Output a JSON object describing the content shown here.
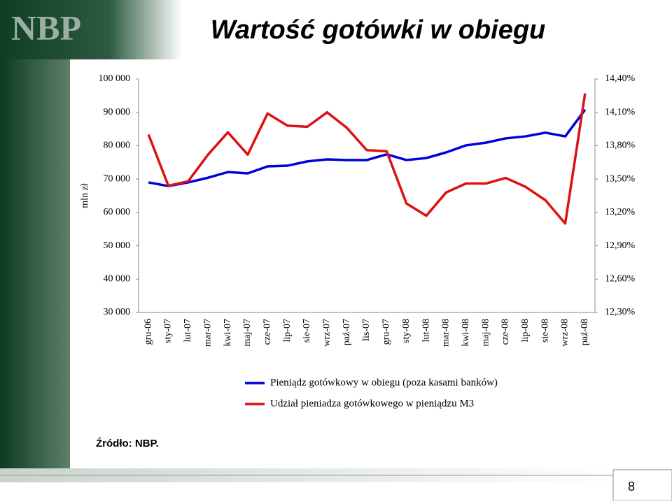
{
  "logo": "NBP",
  "page_number": "8",
  "source": "Źródło: NBP.",
  "chart_data": {
    "type": "line",
    "title": "Wartość gotówki w obiegu",
    "y_label": "mln zł",
    "categories": [
      "gru-06",
      "sty-07",
      "lut-07",
      "mar-07",
      "kwi-07",
      "maj-07",
      "cze-07",
      "lip-07",
      "sie-07",
      "wrz-07",
      "paź-07",
      "lis-07",
      "gru-07",
      "sty-08",
      "lut-08",
      "mar-08",
      "kwi-08",
      "maj-08",
      "cze-08",
      "lip-08",
      "sie-08",
      "wrz-08",
      "paź-08"
    ],
    "series": [
      {
        "name": "Pieniądz gotówkowy w obiegu (poza kasami banków)",
        "color": "#0000dd",
        "values": [
          69000,
          67900,
          69000,
          70400,
          72100,
          71700,
          73800,
          74000,
          75300,
          75900,
          75700,
          75700,
          77400,
          75700,
          76300,
          78000,
          80100,
          80900,
          82200,
          82800,
          83900,
          82800,
          90800
        ]
      },
      {
        "name": "Udział pieniadza gotówkowego w pieniądzu M3",
        "color": "#dd1111",
        "axis": "y2",
        "values": [
          13.9,
          13.44,
          13.48,
          13.72,
          13.92,
          13.72,
          14.09,
          13.98,
          13.97,
          14.1,
          13.96,
          13.76,
          13.75,
          13.28,
          13.17,
          13.38,
          13.46,
          13.46,
          13.51,
          13.43,
          13.31,
          13.1,
          14.27
        ]
      }
    ],
    "ylim": [
      30000,
      100000
    ],
    "yticks": [
      {
        "value": 30000,
        "label": "30 000"
      },
      {
        "value": 40000,
        "label": "40 000"
      },
      {
        "value": 50000,
        "label": "50 000"
      },
      {
        "value": 60000,
        "label": "60 000"
      },
      {
        "value": 70000,
        "label": "70 000"
      },
      {
        "value": 80000,
        "label": "80 000"
      },
      {
        "value": 90000,
        "label": "90 000"
      },
      {
        "value": 100000,
        "label": "100 000"
      }
    ],
    "y2lim": [
      12.3,
      14.4
    ],
    "y2ticks": [
      {
        "value": 12.3,
        "label": "12,30%"
      },
      {
        "value": 12.6,
        "label": "12,60%"
      },
      {
        "value": 12.9,
        "label": "12,90%"
      },
      {
        "value": 13.2,
        "label": "13,20%"
      },
      {
        "value": 13.5,
        "label": "13,50%"
      },
      {
        "value": 13.8,
        "label": "13,80%"
      },
      {
        "value": 14.1,
        "label": "14,10%"
      },
      {
        "value": 14.4,
        "label": "14,40%"
      }
    ],
    "grid": false
  }
}
